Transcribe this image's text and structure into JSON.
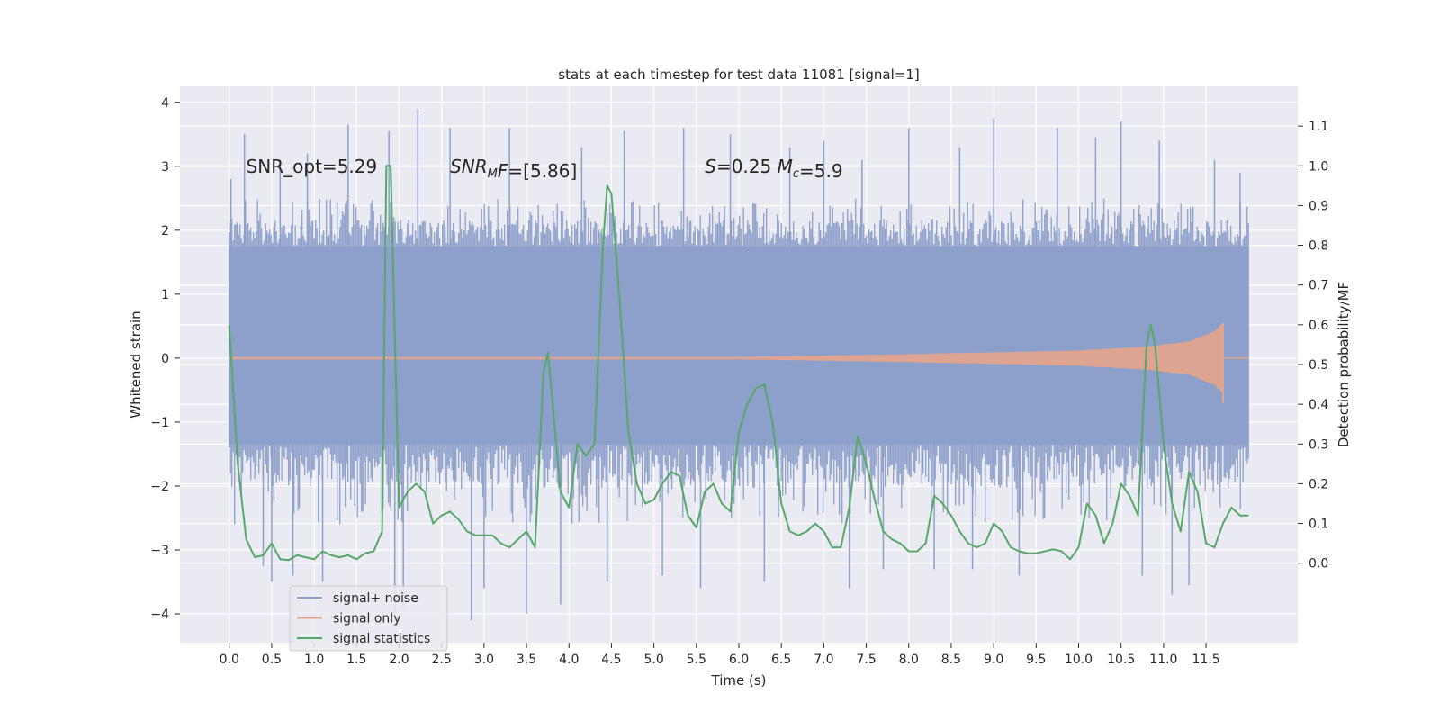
{
  "chart_data": {
    "type": "line",
    "title": "stats at each timestep for test data 11081 [signal=1]",
    "xlabel": "Time (s)",
    "ylabel_left": "Whitened strain",
    "ylabel_right": "Detection probability/MF",
    "xlim": [
      -0.58,
      12.58
    ],
    "ylim_left": [
      -4.45,
      4.25
    ],
    "ylim_right": [
      -0.2,
      1.2
    ],
    "x_ticks": [
      0.0,
      0.5,
      1.0,
      1.5,
      2.0,
      2.5,
      3.0,
      3.5,
      4.0,
      4.5,
      5.0,
      5.5,
      6.0,
      6.5,
      7.0,
      7.5,
      8.0,
      8.5,
      9.0,
      9.5,
      10.0,
      10.5,
      11.0,
      11.5
    ],
    "x_tick_labels": [
      "0.0",
      "0.5",
      "1.0",
      "1.5",
      "2.0",
      "2.5",
      "3.0",
      "3.5",
      "4.0",
      "4.5",
      "5.0",
      "5.5",
      "6.0",
      "6.5",
      "7.0",
      "7.5",
      "8.0",
      "8.5",
      "9.0",
      "9.5",
      "10.0",
      "10.5",
      "11.0",
      "11.5"
    ],
    "y_left_ticks": [
      -4,
      -3,
      -2,
      -1,
      0,
      1,
      2,
      3,
      4
    ],
    "y_left_tick_labels": [
      "−4",
      "−3",
      "−2",
      "−1",
      "0",
      "1",
      "2",
      "3",
      "4"
    ],
    "y_right_ticks": [
      0.0,
      0.1,
      0.2,
      0.3,
      0.4,
      0.5,
      0.6,
      0.7,
      0.8,
      0.9,
      1.0,
      1.1
    ],
    "y_right_tick_labels": [
      "0.0",
      "0.1",
      "0.2",
      "0.3",
      "0.4",
      "0.5",
      "0.6",
      "0.7",
      "0.8",
      "0.9",
      "1.0",
      "1.1"
    ],
    "annotations": [
      {
        "key": "snr-opt",
        "x": 0.2,
        "y": 3.0,
        "parts": [
          {
            "t": "SNR_opt=5.29"
          }
        ]
      },
      {
        "key": "snr-mf",
        "x": 2.6,
        "y": 3.0,
        "parts": [
          {
            "t": "SNR",
            "i": true
          },
          {
            "t": "M",
            "i": true,
            "sub": true
          },
          {
            "t": "F",
            "i": true
          },
          {
            "t": "=[5.86]"
          }
        ]
      },
      {
        "key": "s-mc",
        "x": 5.6,
        "y": 3.0,
        "parts": [
          {
            "t": "S",
            "i": true
          },
          {
            "t": "=0.25   "
          },
          {
            "t": "M",
            "i": true
          },
          {
            "t": "c",
            "i": true,
            "sub": true
          },
          {
            "t": "=5.9"
          }
        ]
      }
    ],
    "legend": {
      "position": "lower-left",
      "entries": [
        {
          "label": "signal+ noise",
          "color": "#8da0cb"
        },
        {
          "label": "signal only",
          "color": "#e5a58b"
        },
        {
          "label": "signal statistics",
          "color": "#55a868"
        }
      ]
    },
    "series": [
      {
        "name": "signal+ noise",
        "axis": "left",
        "color": "#8da0cb",
        "render": "noise_band",
        "t_range": [
          0.0,
          12.0
        ],
        "core_band": [
          -1.35,
          1.75
        ],
        "typical_extremes": [
          -2.6,
          2.5
        ],
        "peak_spikes": [
          {
            "t": 0.02,
            "y": 2.8
          },
          {
            "t": 0.18,
            "y": 3.5
          },
          {
            "t": 0.4,
            "y": -3.25
          },
          {
            "t": 0.5,
            "y": -3.5
          },
          {
            "t": 0.6,
            "y": 3.1
          },
          {
            "t": 0.75,
            "y": -3.4
          },
          {
            "t": 0.92,
            "y": 3.2
          },
          {
            "t": 1.1,
            "y": -3.5
          },
          {
            "t": 1.4,
            "y": 3.65
          },
          {
            "t": 1.88,
            "y": 3.55
          },
          {
            "t": 1.95,
            "y": -4.0
          },
          {
            "t": 2.05,
            "y": -3.9
          },
          {
            "t": 2.22,
            "y": 3.9
          },
          {
            "t": 2.6,
            "y": 3.6
          },
          {
            "t": 2.85,
            "y": -4.1
          },
          {
            "t": 3.0,
            "y": -3.6
          },
          {
            "t": 3.3,
            "y": 3.6
          },
          {
            "t": 3.5,
            "y": -4.0
          },
          {
            "t": 3.9,
            "y": -3.85
          },
          {
            "t": 4.15,
            "y": 3.3
          },
          {
            "t": 4.45,
            "y": -3.5
          },
          {
            "t": 4.65,
            "y": 3.55
          },
          {
            "t": 5.1,
            "y": -3.4
          },
          {
            "t": 5.35,
            "y": 3.6
          },
          {
            "t": 5.55,
            "y": -3.6
          },
          {
            "t": 5.9,
            "y": 3.5
          },
          {
            "t": 6.3,
            "y": -3.5
          },
          {
            "t": 6.6,
            "y": 3.3
          },
          {
            "t": 7.0,
            "y": 3.4
          },
          {
            "t": 7.3,
            "y": -3.6
          },
          {
            "t": 7.45,
            "y": 3.1
          },
          {
            "t": 7.7,
            "y": -3.3
          },
          {
            "t": 8.0,
            "y": 3.6
          },
          {
            "t": 8.3,
            "y": -3.3
          },
          {
            "t": 8.6,
            "y": 3.3
          },
          {
            "t": 8.75,
            "y": -3.3
          },
          {
            "t": 9.0,
            "y": 3.75
          },
          {
            "t": 9.3,
            "y": -3.4
          },
          {
            "t": 9.75,
            "y": 3.6
          },
          {
            "t": 10.2,
            "y": 3.45
          },
          {
            "t": 10.5,
            "y": 3.7
          },
          {
            "t": 10.75,
            "y": -3.4
          },
          {
            "t": 10.95,
            "y": 3.4
          },
          {
            "t": 11.1,
            "y": -3.7
          },
          {
            "t": 11.3,
            "y": -3.55
          },
          {
            "t": 11.6,
            "y": 3.1
          },
          {
            "t": 11.9,
            "y": 2.9
          }
        ]
      },
      {
        "name": "signal only",
        "axis": "left",
        "color": "#e5a58b",
        "render": "chirp_envelope",
        "t_range": [
          0.0,
          12.0
        ],
        "t_peak": 11.7,
        "amplitude_at": [
          {
            "t": 0.0,
            "a": 0.02
          },
          {
            "t": 6.0,
            "a": 0.02
          },
          {
            "t": 7.5,
            "a": 0.05
          },
          {
            "t": 9.0,
            "a": 0.09
          },
          {
            "t": 10.0,
            "a": 0.12
          },
          {
            "t": 10.8,
            "a": 0.18
          },
          {
            "t": 11.3,
            "a": 0.26
          },
          {
            "t": 11.6,
            "a": 0.42
          },
          {
            "t": 11.7,
            "a": 0.55
          }
        ],
        "min_at_peak": -0.7
      },
      {
        "name": "signal statistics",
        "axis": "right",
        "color": "#55a868",
        "render": "line",
        "t": [
          0.0,
          0.1,
          0.2,
          0.3,
          0.4,
          0.5,
          0.6,
          0.7,
          0.8,
          0.9,
          1.0,
          1.1,
          1.2,
          1.3,
          1.4,
          1.5,
          1.6,
          1.7,
          1.8,
          1.85,
          1.9,
          2.0,
          2.1,
          2.2,
          2.3,
          2.4,
          2.5,
          2.6,
          2.7,
          2.8,
          2.9,
          3.0,
          3.1,
          3.2,
          3.3,
          3.4,
          3.5,
          3.6,
          3.7,
          3.75,
          3.8,
          3.9,
          4.0,
          4.1,
          4.2,
          4.3,
          4.4,
          4.45,
          4.5,
          4.6,
          4.7,
          4.8,
          4.9,
          5.0,
          5.1,
          5.2,
          5.3,
          5.4,
          5.5,
          5.6,
          5.7,
          5.8,
          5.9,
          6.0,
          6.1,
          6.2,
          6.3,
          6.4,
          6.5,
          6.6,
          6.7,
          6.8,
          6.9,
          7.0,
          7.1,
          7.2,
          7.3,
          7.4,
          7.5,
          7.6,
          7.7,
          7.8,
          7.9,
          8.0,
          8.1,
          8.2,
          8.3,
          8.4,
          8.5,
          8.6,
          8.7,
          8.8,
          8.9,
          9.0,
          9.1,
          9.2,
          9.3,
          9.4,
          9.5,
          9.6,
          9.7,
          9.8,
          9.9,
          10.0,
          10.1,
          10.2,
          10.3,
          10.4,
          10.5,
          10.6,
          10.7,
          10.8,
          10.85,
          10.9,
          11.0,
          11.1,
          11.2,
          11.3,
          11.4,
          11.5,
          11.6,
          11.7,
          11.8,
          11.9,
          12.0
        ],
        "p": [
          0.6,
          0.25,
          0.06,
          0.015,
          0.02,
          0.05,
          0.01,
          0.008,
          0.02,
          0.015,
          0.01,
          0.03,
          0.02,
          0.015,
          0.02,
          0.01,
          0.025,
          0.03,
          0.08,
          1.0,
          1.0,
          0.14,
          0.18,
          0.2,
          0.18,
          0.1,
          0.12,
          0.13,
          0.11,
          0.08,
          0.07,
          0.07,
          0.07,
          0.05,
          0.04,
          0.06,
          0.08,
          0.04,
          0.48,
          0.53,
          0.42,
          0.18,
          0.14,
          0.3,
          0.27,
          0.3,
          0.8,
          0.95,
          0.93,
          0.65,
          0.33,
          0.2,
          0.15,
          0.16,
          0.2,
          0.23,
          0.22,
          0.12,
          0.09,
          0.18,
          0.2,
          0.15,
          0.13,
          0.33,
          0.4,
          0.44,
          0.45,
          0.35,
          0.15,
          0.08,
          0.07,
          0.08,
          0.1,
          0.08,
          0.04,
          0.04,
          0.14,
          0.32,
          0.25,
          0.16,
          0.08,
          0.06,
          0.05,
          0.03,
          0.03,
          0.05,
          0.17,
          0.15,
          0.12,
          0.08,
          0.05,
          0.04,
          0.05,
          0.1,
          0.08,
          0.04,
          0.03,
          0.025,
          0.025,
          0.03,
          0.035,
          0.03,
          0.01,
          0.04,
          0.15,
          0.12,
          0.05,
          0.1,
          0.2,
          0.17,
          0.12,
          0.55,
          0.6,
          0.55,
          0.3,
          0.15,
          0.08,
          0.23,
          0.18,
          0.05,
          0.04,
          0.1,
          0.14,
          0.12,
          0.12
        ]
      }
    ]
  }
}
